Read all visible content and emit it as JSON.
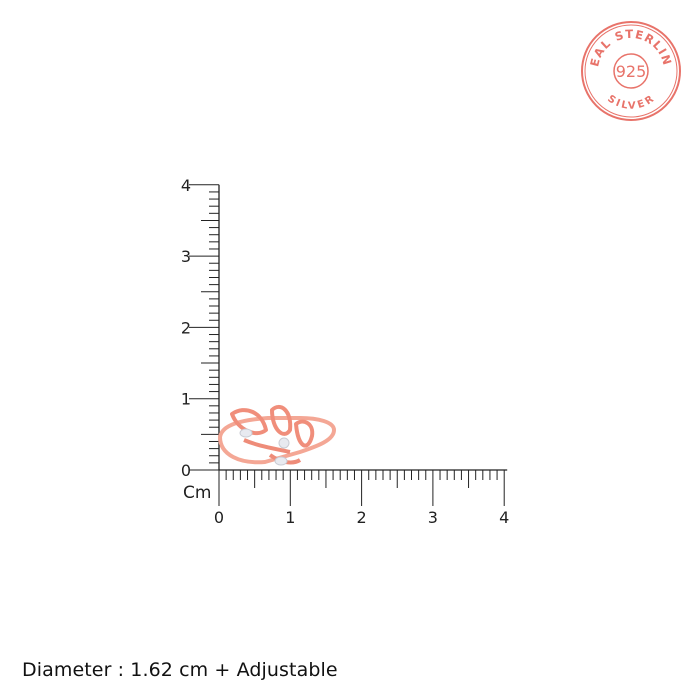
{
  "seal": {
    "top_text": "REAL STERLING",
    "center_text": "925",
    "bottom_text": "SILVER",
    "color": "#e8736a"
  },
  "ruler": {
    "unit_label": "Cm",
    "x_ticks": [
      "0",
      "1",
      "2",
      "3",
      "4"
    ],
    "y_ticks": [
      "0",
      "1",
      "2",
      "3",
      "4"
    ],
    "minor_divisions_per_unit": 10,
    "color": "#222222"
  },
  "product": {
    "name_icon": "rose-gold-leaf-ring-image",
    "metal_color": "#f4a08e",
    "approx_width_cm": 1.62
  },
  "caption": "Diameter : 1.62 cm + Adjustable"
}
